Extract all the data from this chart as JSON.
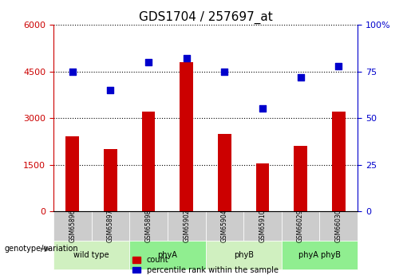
{
  "title": "GDS1704 / 257697_at",
  "samples": [
    "GSM65896",
    "GSM65897",
    "GSM65898",
    "GSM65902",
    "GSM65904",
    "GSM65910",
    "GSM66029",
    "GSM66030"
  ],
  "counts": [
    2400,
    2000,
    3200,
    4800,
    2500,
    1550,
    2100,
    3200
  ],
  "percentile_ranks": [
    75,
    65,
    80,
    82,
    75,
    55,
    72,
    78
  ],
  "groups": [
    {
      "label": "wild type",
      "color": "#d0f0c0",
      "span": [
        0,
        2
      ]
    },
    {
      "label": "phyA",
      "color": "#90ee90",
      "span": [
        2,
        4
      ]
    },
    {
      "label": "phyB",
      "color": "#d0f0c0",
      "span": [
        4,
        6
      ]
    },
    {
      "label": "phyA phyB",
      "color": "#90ee90",
      "span": [
        6,
        8
      ]
    }
  ],
  "bar_color": "#cc0000",
  "dot_color": "#0000cc",
  "left_axis_color": "#cc0000",
  "right_axis_color": "#0000cc",
  "ylim_left": [
    0,
    6000
  ],
  "ylim_right": [
    0,
    100
  ],
  "yticks_left": [
    0,
    1500,
    3000,
    4500,
    6000
  ],
  "ytick_labels_left": [
    "0",
    "1500",
    "3000",
    "4500",
    "6000"
  ],
  "yticks_right": [
    0,
    25,
    50,
    75,
    100
  ],
  "ytick_labels_right": [
    "0",
    "25",
    "50",
    "75",
    "100%"
  ],
  "legend_count_label": "count",
  "legend_pct_label": "percentile rank within the sample",
  "group_label": "genotype/variation",
  "tick_cell_color": "#cccccc",
  "bg_color": "#ffffff"
}
